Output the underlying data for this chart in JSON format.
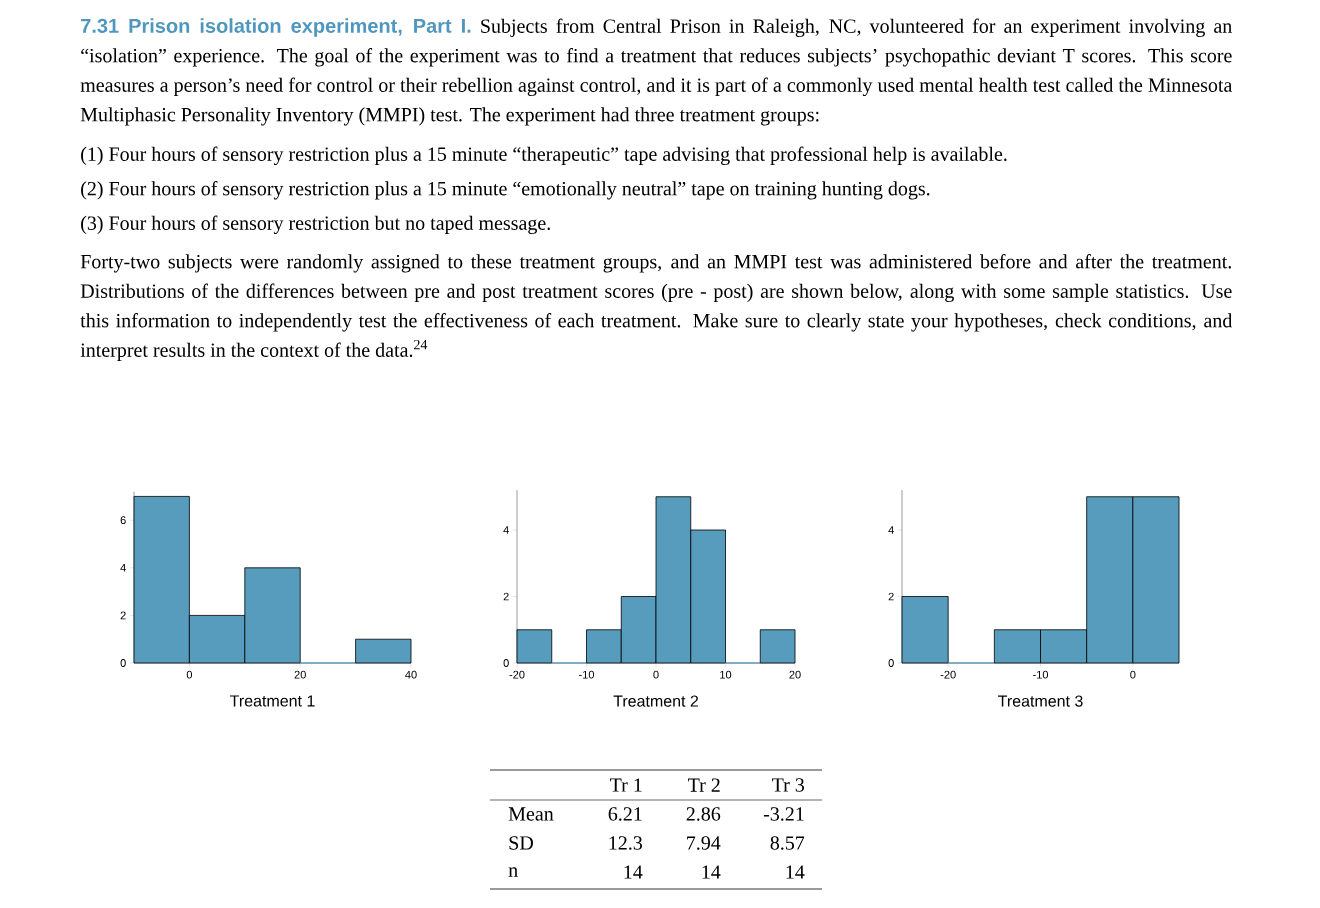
{
  "chart_data": [
    {
      "type": "histogram",
      "title": "7.31 Prison isolation experiment, Part I.",
      "subtitle": "Subjects from Central Prison in Raleigh, NC, volunteered for an experiment involving an “isolation” experience. The goal of the experiment was to find a treatment that reduces subjects’ psychopathic deviant T scores. This score measures a person’s need for control or their rebellion against control, and it is part of a commonly used mental health test called the Minnesota Multiphasic Personality Inventory (MMPI) test. The experiment had three treatment groups:",
      "annotations": [
        "(1) Four hours of sensory restriction plus a 15 minute “therapeutic” tape advising that professional help is available.",
        "(2) Four hours of sensory restriction plus a 15 minute “emotionally neutral” tape on training hunting dogs.",
        "(3) Four hours of sensory restriction but no taped message.",
        "Forty-two subjects were randomly assigned to these treatment groups, and an MMPI test was administered before and after the treatment. Distributions of the differences between pre and post treatment scores (pre - post) are shown below, along with some sample statistics. Use this information to independently test the effectiveness of each treatment. Make sure to clearly state your hypotheses, check conditions, and interpret results in the context of the data.$^{24}$"
      ],
      "xlabel": "Treatment 1",
      "bins": [
        -10,
        0,
        10,
        20,
        30,
        40
      ],
      "values": [
        7,
        2,
        4,
        0,
        1
      ],
      "color": "#579cbd",
      "xlim": [
        -10,
        40
      ],
      "ylim": [
        0,
        7.2
      ],
      "xticks": [
        0,
        20,
        40
      ],
      "yticks": [
        0,
        2,
        4,
        6
      ]
    },
    {
      "type": "histogram",
      "xlabel": "Treatment 2",
      "bins": [
        -20,
        -15,
        -10,
        -5,
        0,
        5,
        10,
        15,
        20
      ],
      "values": [
        1,
        0,
        1,
        2,
        5,
        4,
        0,
        1
      ],
      "color": "#579cbd",
      "xlim": [
        -20,
        20
      ],
      "ylim": [
        0,
        5.2
      ],
      "xticks": [
        -20,
        -10,
        0,
        10,
        20
      ],
      "yticks": [
        0,
        2,
        4
      ]
    },
    {
      "type": "histogram",
      "xlabel": "Treatment 3",
      "bins": [
        -25,
        -20,
        -15,
        -10,
        -5,
        0,
        5
      ],
      "values": [
        2,
        0,
        1,
        1,
        5,
        5
      ],
      "color": "#579cbd",
      "xlim": [
        -25,
        5
      ],
      "ylim": [
        0,
        5.2
      ],
      "xticks": [
        -20,
        -10,
        0
      ],
      "yticks": [
        0,
        2,
        4
      ]
    },
    {
      "type": "other",
      "categories": [
        "Tr 1",
        "Tr 2",
        "Tr 3"
      ],
      "y_categories": [
        "Mean",
        "SD",
        "n"
      ],
      "cell_labels": [
        [
          "6.21",
          "2.86",
          "-3.21"
        ],
        [
          "12.3",
          "7.94",
          "8.57"
        ],
        [
          "14",
          "14",
          "14"
        ]
      ]
    }
  ]
}
